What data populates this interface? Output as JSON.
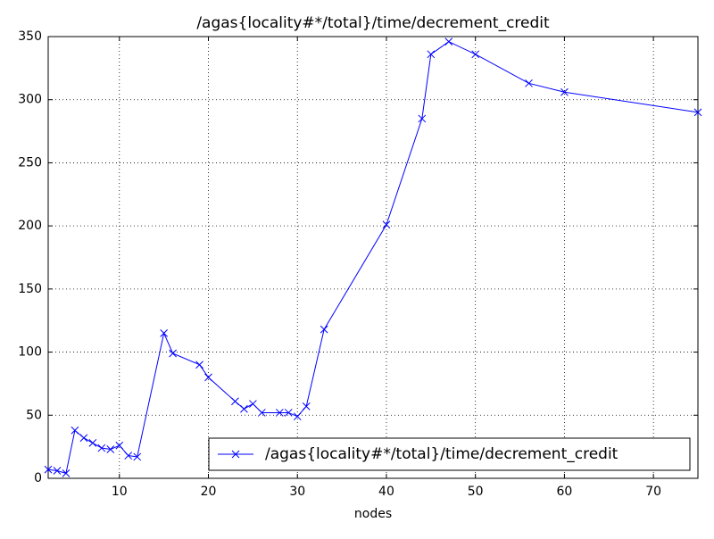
{
  "chart_data": {
    "type": "line",
    "title": "/agas{locality#*/total}/time/decrement_credit",
    "x_label": "nodes",
    "x": [
      2,
      3,
      4,
      5,
      6,
      7,
      8,
      9,
      10,
      11,
      12,
      15,
      16,
      19,
      20,
      23,
      24,
      25,
      26,
      28,
      29,
      30,
      31,
      33,
      40,
      44,
      45,
      47,
      50,
      56,
      60,
      75
    ],
    "series": [
      {
        "name": "/agas{locality#*/total}/time/decrement_credit",
        "color": "#0000ff",
        "values": [
          7,
          6,
          4,
          38,
          32,
          28,
          24,
          23,
          26,
          18,
          17,
          115,
          99,
          90,
          80,
          61,
          55,
          59,
          52,
          52,
          52,
          49,
          57,
          118,
          201,
          285,
          336,
          346,
          336,
          313,
          306,
          290
        ]
      }
    ],
    "xlim": [
      2,
      75
    ],
    "xticks": [
      10,
      20,
      30,
      40,
      50,
      60,
      70
    ],
    "ylim": [
      0,
      350
    ],
    "yticks": [
      0,
      50,
      100,
      150,
      200,
      250,
      300,
      350
    ],
    "grid": true,
    "legend": "lower right",
    "marker": "x"
  }
}
